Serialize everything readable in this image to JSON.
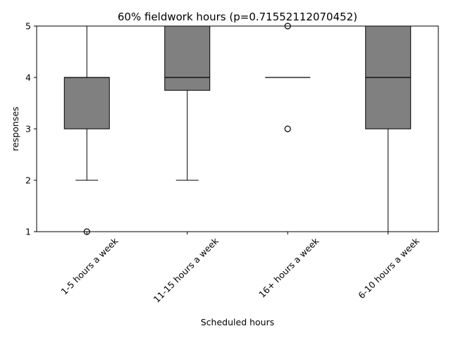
{
  "chart_data": {
    "type": "box",
    "title": "60% fieldwork hours (p=0.71552112070452)",
    "xlabel": "Scheduled hours",
    "ylabel": "responses",
    "ylim": [
      1,
      5
    ],
    "yticks": [
      "1",
      "2",
      "3",
      "4",
      "5"
    ],
    "categories": [
      "1-5 hours a week",
      "11-15 hours a week",
      "16+ hours a week",
      "6-10 hours a week"
    ],
    "boxes": [
      {
        "whisker_low": 2,
        "q1": 3,
        "median": 4,
        "q3": 4,
        "whisker_high": 5,
        "outliers": [
          1
        ]
      },
      {
        "whisker_low": 2,
        "q1": 3.75,
        "median": 4,
        "q3": 5,
        "whisker_high": 5,
        "outliers": []
      },
      {
        "whisker_low": 4,
        "q1": 4,
        "median": 4,
        "q3": 4,
        "whisker_high": 4,
        "outliers": [
          5,
          3
        ]
      },
      {
        "whisker_low": 1,
        "q1": 3,
        "median": 4,
        "q3": 5,
        "whisker_high": 5,
        "outliers": []
      }
    ],
    "box_color": "#808080",
    "grid": false,
    "legend": "none"
  }
}
